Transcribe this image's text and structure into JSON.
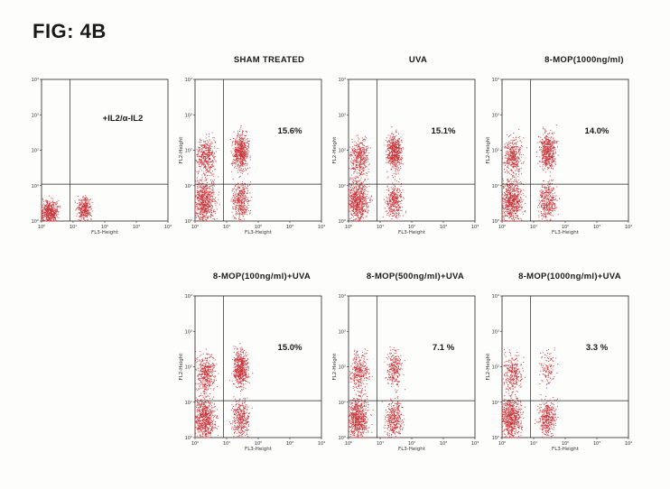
{
  "figure": {
    "title": "FIG: 4B"
  },
  "chart_data": [
    {
      "type": "scatter",
      "title": "",
      "annotation": "+IL2/α-IL2",
      "xlabel": "FL3-Height",
      "ylabel": "",
      "xscale": "log",
      "yscale": "log",
      "xlim": [
        1,
        10000
      ],
      "ylim": [
        1,
        10000
      ],
      "upper_right_percent": null,
      "quadrant_gates": {
        "x": 8,
        "y": 11
      }
    },
    {
      "type": "scatter",
      "title": "SHAM TREATED",
      "annotation": "15.6%",
      "xlabel": "FL3-Height",
      "ylabel": "FL2-Height",
      "xscale": "log",
      "yscale": "log",
      "xlim": [
        1,
        10000
      ],
      "ylim": [
        1,
        10000
      ],
      "upper_right_percent": 15.6,
      "quadrant_gates": {
        "x": 8,
        "y": 11
      }
    },
    {
      "type": "scatter",
      "title": "UVA",
      "annotation": "15.1%",
      "xlabel": "FL3-Height",
      "ylabel": "FL2-Height",
      "xscale": "log",
      "yscale": "log",
      "xlim": [
        1,
        10000
      ],
      "ylim": [
        1,
        10000
      ],
      "upper_right_percent": 15.1,
      "quadrant_gates": {
        "x": 8,
        "y": 11
      }
    },
    {
      "type": "scatter",
      "title": "8-MOP(1000ng/ml)",
      "annotation": "14.0%",
      "xlabel": "FL3-Height",
      "ylabel": "FL2-Height",
      "xscale": "log",
      "yscale": "log",
      "xlim": [
        1,
        10000
      ],
      "ylim": [
        1,
        10000
      ],
      "upper_right_percent": 14.0,
      "quadrant_gates": {
        "x": 8,
        "y": 11
      }
    },
    {
      "type": "scatter",
      "title": "8-MOP(100ng/ml)+UVA",
      "annotation": "15.0%",
      "xlabel": "FL3-Height",
      "ylabel": "FL2-Height",
      "xscale": "log",
      "yscale": "log",
      "xlim": [
        1,
        10000
      ],
      "ylim": [
        1,
        10000
      ],
      "upper_right_percent": 15.0,
      "quadrant_gates": {
        "x": 8,
        "y": 11
      }
    },
    {
      "type": "scatter",
      "title": "8-MOP(500ng/ml)+UVA",
      "annotation": "7.1 %",
      "xlabel": "FL3-Height",
      "ylabel": "FL2-Height",
      "xscale": "log",
      "yscale": "log",
      "xlim": [
        1,
        10000
      ],
      "ylim": [
        1,
        10000
      ],
      "upper_right_percent": 7.1,
      "quadrant_gates": {
        "x": 8,
        "y": 11
      }
    },
    {
      "type": "scatter",
      "title": "8-MOP(1000ng/ml)+UVA",
      "annotation": "3.3 %",
      "xlabel": "FL3-Height",
      "ylabel": "FL2-Height",
      "xscale": "log",
      "yscale": "log",
      "xlim": [
        1,
        10000
      ],
      "ylim": [
        1,
        10000
      ],
      "upper_right_percent": 3.3,
      "quadrant_gates": {
        "x": 8,
        "y": 11
      }
    }
  ],
  "axis": {
    "x_ticks": [
      "10⁰",
      "10¹",
      "10²",
      "10³",
      "10⁴"
    ],
    "y_ticks": [
      "10⁰",
      "10¹",
      "10²",
      "10³",
      "10⁴"
    ]
  },
  "colors": {
    "dots": "#c8343a",
    "axes": "#222222",
    "text": "#1a1a1a"
  }
}
